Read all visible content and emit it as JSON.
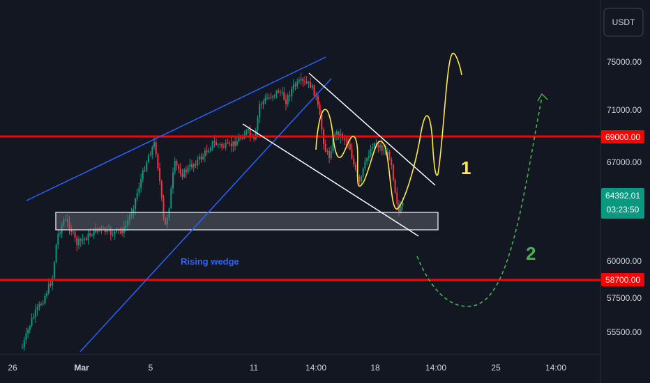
{
  "currency_button": "USDT",
  "chart_data": {
    "type": "candlestick",
    "title": "",
    "y_ticks": [
      "75000.00",
      "71000.00",
      "67000.00",
      "60000.00",
      "57500.00",
      "55500.00"
    ],
    "x_ticks": [
      "26",
      "Mar",
      "5",
      "11",
      "14:00",
      "18",
      "14:00",
      "25",
      "14:00"
    ],
    "horizontal_levels": [
      {
        "label": "69000.00",
        "value": 69000,
        "color": "#ff0000"
      },
      {
        "label": "58700.00",
        "value": 58700,
        "color": "#ff0000"
      }
    ],
    "current_price": {
      "value": "64392.01",
      "countdown": "03:23:50",
      "color": "#089981"
    },
    "support_zone": {
      "from": 62300,
      "to": 63800
    },
    "annotations": [
      {
        "text": "Rising wedge",
        "color": "#2962ff"
      },
      {
        "text": "1",
        "color": "#ffeb3b"
      },
      {
        "text": "2",
        "color": "#4caf50"
      }
    ],
    "scenarios": [
      {
        "name": "1",
        "color": "#ffeb3b",
        "style": "solid"
      },
      {
        "name": "2",
        "color": "#4caf50",
        "style": "dashed"
      }
    ],
    "colors": {
      "up": "#089981",
      "down": "#f23645",
      "background": "#131722",
      "wedge": "#2962ff",
      "channel": "#ffffff"
    }
  }
}
